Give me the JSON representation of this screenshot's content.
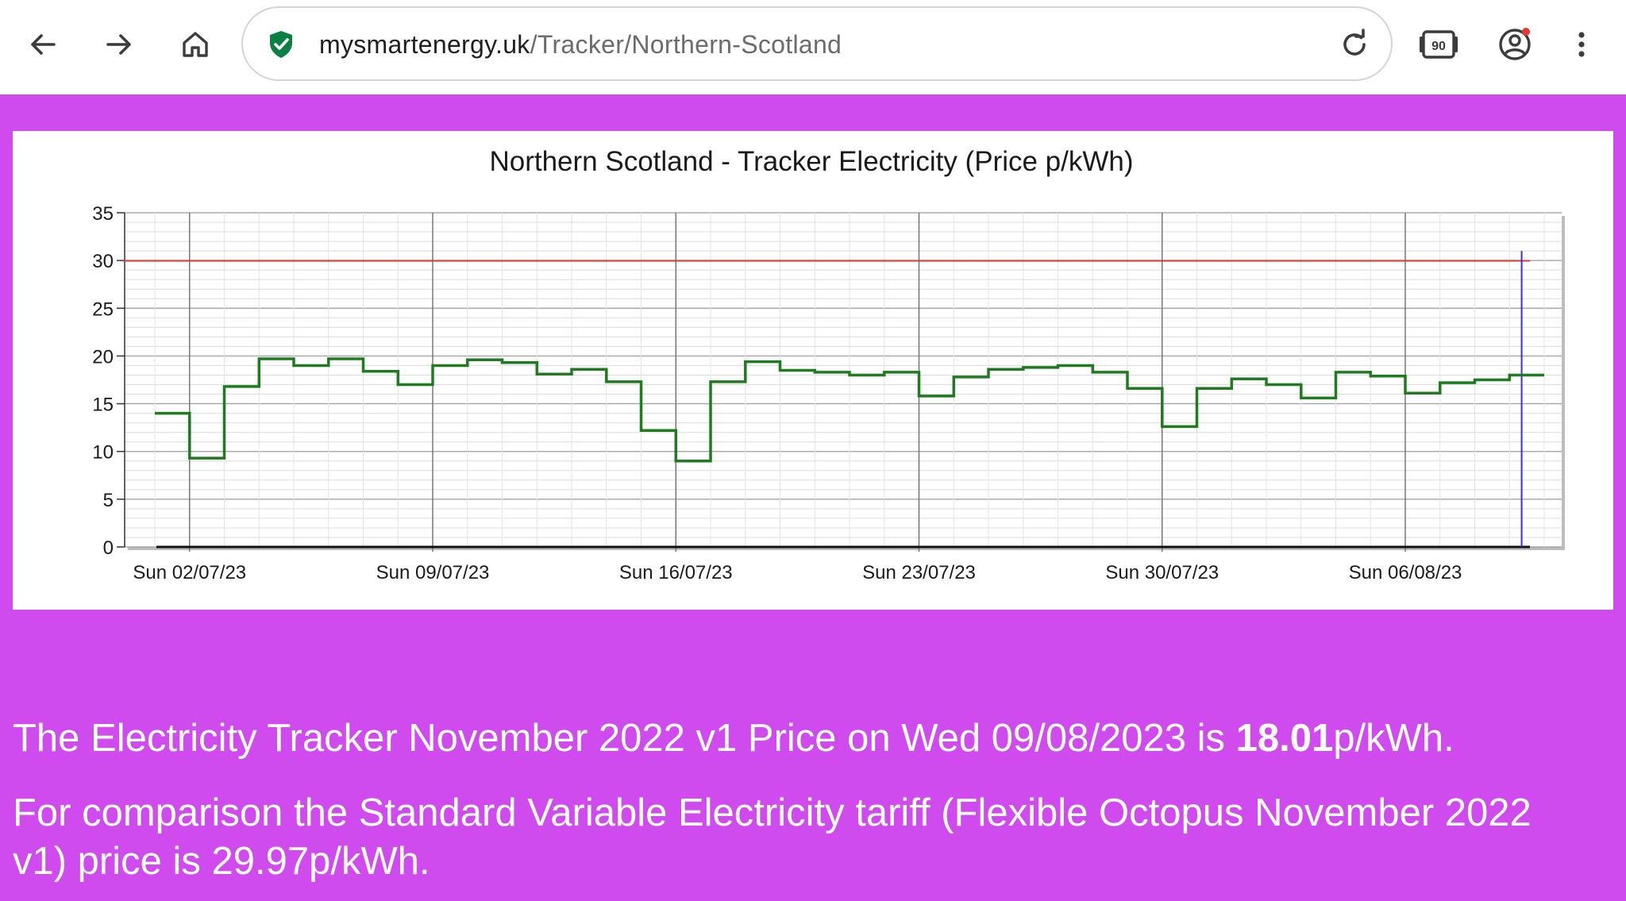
{
  "browser": {
    "url_domain": "mysmartenergy.uk",
    "url_path": "/Tracker/Northern-Scotland",
    "tab_count": "90",
    "icons": [
      "back-arrow-icon",
      "forward-arrow-icon",
      "home-icon",
      "secure-shield-icon",
      "reload-icon",
      "tab-switcher-icon",
      "account-icon",
      "more-menu-icon"
    ],
    "accent_color": "#0b8043",
    "notification_dot_color": "#e53935"
  },
  "chart_data": {
    "type": "line",
    "title": "Northern Scotland - Tracker Electricity (Price p/kWh)",
    "xlabel": "",
    "ylabel": "",
    "ylim": [
      0,
      35
    ],
    "yticks": [
      "0",
      "5",
      "10",
      "15",
      "20",
      "25",
      "30",
      "35"
    ],
    "xtick_labels": [
      "Sun 02/07/23",
      "Sun 09/07/23",
      "Sun 16/07/23",
      "Sun 23/07/23",
      "Sun 30/07/23",
      "Sun 06/08/23"
    ],
    "xlim": [
      "01/07/23",
      "10/08/23"
    ],
    "grid": true,
    "step": true,
    "series": [
      {
        "color": "#1e7b1e",
        "x": [
          "01/07/23",
          "02/07/23",
          "03/07/23",
          "04/07/23",
          "05/07/23",
          "06/07/23",
          "07/07/23",
          "08/07/23",
          "09/07/23",
          "10/07/23",
          "11/07/23",
          "12/07/23",
          "13/07/23",
          "14/07/23",
          "15/07/23",
          "16/07/23",
          "17/07/23",
          "18/07/23",
          "19/07/23",
          "20/07/23",
          "21/07/23",
          "22/07/23",
          "23/07/23",
          "24/07/23",
          "25/07/23",
          "26/07/23",
          "27/07/23",
          "28/07/23",
          "29/07/23",
          "30/07/23",
          "31/07/23",
          "01/08/23",
          "02/08/23",
          "03/08/23",
          "04/08/23",
          "05/08/23",
          "06/08/23",
          "07/08/23",
          "08/08/23",
          "09/08/23"
        ],
        "values": [
          14.0,
          9.3,
          16.8,
          19.7,
          19.0,
          19.7,
          18.4,
          17.0,
          19.0,
          19.6,
          19.3,
          18.1,
          18.6,
          17.3,
          12.2,
          9.0,
          17.3,
          19.4,
          18.5,
          18.3,
          18.0,
          18.3,
          15.8,
          17.8,
          18.6,
          18.8,
          19.0,
          18.3,
          16.6,
          12.6,
          16.6,
          17.6,
          17.0,
          15.6,
          18.3,
          17.9,
          16.1,
          17.2,
          17.5,
          18.0
        ]
      }
    ],
    "reference_line": {
      "value": 29.97,
      "color": "#e0322a"
    },
    "today_marker": {
      "x": "09/08/23",
      "color": "#3333cc"
    }
  },
  "message": {
    "line1_prefix": "The Electricity Tracker November 2022 v1 Price on Wed 09/08/2023 is ",
    "line1_value": "18.01",
    "line1_suffix": "p/kWh.",
    "line2a": "For comparison the Standard Variable Electricity tariff (Flexible Octopus November 2022",
    "line2b": "v1) price is 29.97p/kWh."
  }
}
